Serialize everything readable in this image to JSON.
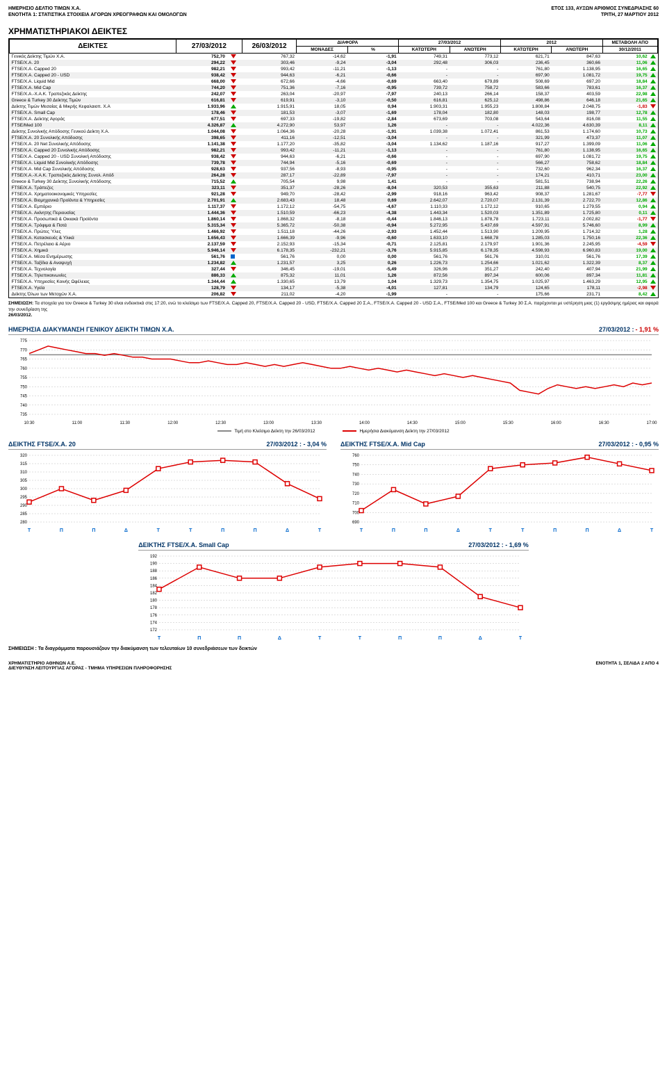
{
  "header": {
    "l1": "ΗΜΕΡΗΣΙΟ ΔΕΛΤΙΟ ΤΙΜΩΝ Χ.Α.",
    "l2": "ΕΝΟΤΗΤΑ 1: ΣΤΑΤΙΣΤΙΚΑ ΣΤΟΙΧΕΙΑ ΑΓΟΡΩΝ ΧΡΕΟΓΡΑΦΩΝ ΚΑΙ ΟΜΟΛΟΓΩΝ",
    "r1": "ΕΤΟΣ 133,  ΑΥΞΩΝ ΑΡΙΘΜΟΣ ΣΥΝΕΔΡΙΑΣΗΣ 60",
    "r2": "ΤΡΙΤΗ, 27 ΜΑΡΤΙΟΥ 2012"
  },
  "section_title": "ΧΡΗΜΑΤΙΣΤΗΡΙΑΚΟΙ ΔΕΙΚΤΕΣ",
  "table_head": {
    "deiktes": "ΔΕΙΚΤΕΣ",
    "d1": "27/03/2012",
    "d2": "26/03/2012",
    "diafora": "ΔΙΑΦΟΡΑ",
    "monades": "ΜΟΝΑΔΕΣ",
    "pct": "%",
    "g1": "27/03/2012",
    "g2": "2012",
    "kat": "ΚΑΤΩΤΕΡΗ",
    "ano": "ΑΝΩΤΕΡΗ",
    "met": "ΜΕΤΑΒΟΛΗ ΑΠΟ",
    "met2": "30/12/2011"
  },
  "rows": [
    {
      "n": "Γενικός Δείκτης Τιμών Χ.Α.",
      "v1": "752,70",
      "t1": "dn",
      "v2": "767,32",
      "d": "-14,62",
      "p": "-1,91",
      "k1": "749,31",
      "a1": "773,12",
      "k2": "621,71",
      "a2": "847,63",
      "m": "10,62",
      "mt": "up"
    },
    {
      "n": "FTSE/X.A. 20",
      "v1": "294,22",
      "t1": "dn",
      "v2": "303,46",
      "d": "-9,24",
      "p": "-3,04",
      "k1": "292,48",
      "a1": "306,03",
      "k2": "236,45",
      "a2": "360,66",
      "m": "11,06",
      "mt": "up"
    },
    {
      "n": "FTSE/X.A. Capped 20",
      "v1": "982,21",
      "t1": "dn",
      "v2": "993,42",
      "d": "-11,21",
      "p": "-1,13",
      "k1": "-",
      "a1": "-",
      "k2": "761,80",
      "a2": "1.138,95",
      "m": "16,65",
      "mt": "up"
    },
    {
      "n": "FTSE/X.A. Capped 20 - USD",
      "v1": "938,42",
      "t1": "dn",
      "v2": "944,63",
      "d": "-6,21",
      "p": "-0,66",
      "k1": "-",
      "a1": "-",
      "k2": "697,90",
      "a2": "1.081,72",
      "m": "19,75",
      "mt": "up"
    },
    {
      "n": "FTSE/X.A. Liquid Mid",
      "v1": "668,00",
      "t1": "dn",
      "v2": "672,66",
      "d": "-4,66",
      "p": "-0,69",
      "k1": "663,40",
      "a1": "679,89",
      "k2": "508,69",
      "a2": "697,20",
      "m": "18,84",
      "mt": "up"
    },
    {
      "n": "FTSE/X.A. Mid Cap",
      "v1": "744,20",
      "t1": "dn",
      "v2": "751,36",
      "d": "-7,16",
      "p": "-0,95",
      "k1": "739,72",
      "a1": "758,72",
      "k2": "583,66",
      "a2": "783,61",
      "m": "16,37",
      "mt": "up"
    },
    {
      "n": "FTSE/X.A.-X.A.K. Τραπεζικός Δείκτης",
      "v1": "242,07",
      "t1": "dn",
      "v2": "263,04",
      "d": "-20,97",
      "p": "-7,97",
      "k1": "240,13",
      "a1": "266,14",
      "k2": "158,37",
      "a2": "403,59",
      "m": "22,98",
      "mt": "up"
    },
    {
      "n": "Greece & Turkey 30 Δείκτης Τιμών",
      "v1": "616,81",
      "t1": "dn",
      "v2": "619,91",
      "d": "-3,10",
      "p": "-0,50",
      "k1": "616,81",
      "a1": "625,12",
      "k2": "498,86",
      "a2": "646,18",
      "m": "21,65",
      "mt": "up"
    },
    {
      "n": "Δείκτης Τιμών Μεσαίας & Μικρής Κεφαλαιοπ.  Χ.Α",
      "v1": "1.933,96",
      "t1": "up",
      "v2": "1.915,91",
      "d": "18,05",
      "p": "0,94",
      "k1": "1.903,31",
      "a1": "1.955,23",
      "k2": "1.808,84",
      "a2": "2.048,75",
      "m": "-1,83",
      "mt": "dn"
    },
    {
      "n": "FTSE/X.A. Small Cap",
      "v1": "178,46",
      "t1": "dn",
      "v2": "181,53",
      "d": "-3,07",
      "p": "-1,69",
      "k1": "178,04",
      "a1": "182,80",
      "k2": "148,03",
      "a2": "198,77",
      "m": "12,78",
      "mt": "up"
    },
    {
      "n": "FTSE/X.A. Δείκτης Αγοράς",
      "v1": "677,51",
      "t1": "dn",
      "v2": "697,33",
      "d": "-19,82",
      "p": "-2,84",
      "k1": "673,69",
      "a1": "703,08",
      "k2": "543,64",
      "a2": "816,08",
      "m": "11,55",
      "mt": "up"
    },
    {
      "n": "FTSE/Med 100",
      "v1": "4.326,87",
      "t1": "up",
      "v2": "4.272,90",
      "d": "53,97",
      "p": "1,26",
      "k1": "-",
      "a1": "-",
      "k2": "4.022,36",
      "a2": "4.630,39",
      "m": "8,11",
      "mt": "up"
    },
    {
      "n": "Δείκτης Συνολικής Απόδοσης Γενικού Δείκτη Χ.Α.",
      "v1": "1.044,08",
      "t1": "dn",
      "v2": "1.064,36",
      "d": "-20,28",
      "p": "-1,91",
      "k1": "1.039,38",
      "a1": "1.072,41",
      "k2": "861,53",
      "a2": "1.174,60",
      "m": "10,73",
      "mt": "up"
    },
    {
      "n": "FTSE/X.A. 20 Συνολικής Απόδοσης",
      "v1": "398,65",
      "t1": "dn",
      "v2": "411,16",
      "d": "-12,51",
      "p": "-3,04",
      "k1": "-",
      "a1": "-",
      "k2": "321,99",
      "a2": "473,37",
      "m": "11,07",
      "mt": "up"
    },
    {
      "n": "FTSE/X.A. 20 Net Συνολικής Απόδοσης",
      "v1": "1.141,38",
      "t1": "dn",
      "v2": "1.177,20",
      "d": "-35,82",
      "p": "-3,04",
      "k1": "1.134,62",
      "a1": "1.187,16",
      "k2": "917,27",
      "a2": "1.399,09",
      "m": "11,06",
      "mt": "up"
    },
    {
      "n": "FTSE/X.A. Capped 20 Συνολικής Απόδοσης",
      "v1": "982,21",
      "t1": "dn",
      "v2": "993,42",
      "d": "-11,21",
      "p": "-1,13",
      "k1": "-",
      "a1": "-",
      "k2": "761,80",
      "a2": "1.138,95",
      "m": "16,65",
      "mt": "up"
    },
    {
      "n": "FTSE/X.A. Capped 20 - USD Συνολική Απόδοσης",
      "v1": "938,42",
      "t1": "dn",
      "v2": "944,63",
      "d": "-6,21",
      "p": "-0,66",
      "k1": "-",
      "a1": "-",
      "k2": "697,90",
      "a2": "1.081,72",
      "m": "19,75",
      "mt": "up"
    },
    {
      "n": "FTSE/X.A. Liquid Mid Συνολικής Απόδοσης",
      "v1": "739,78",
      "t1": "dn",
      "v2": "744,94",
      "d": "-5,16",
      "p": "-0,69",
      "k1": "-",
      "a1": "-",
      "k2": "566,27",
      "a2": "758,62",
      "m": "18,84",
      "mt": "up"
    },
    {
      "n": "FTSE/X.A. Mid Cap Συνολικής Απόδοσης",
      "v1": "928,63",
      "t1": "dn",
      "v2": "937,56",
      "d": "-8,93",
      "p": "-0,95",
      "k1": "-",
      "a1": "-",
      "k2": "732,60",
      "a2": "962,34",
      "m": "16,37",
      "mt": "up"
    },
    {
      "n": "FTSE/X.A.-X.A.K. Τραπεζικός Δείκτης Συνολ. Απόδ",
      "v1": "264,28",
      "t1": "dn",
      "v2": "287,17",
      "d": "-22,89",
      "p": "-7,97",
      "k1": "-",
      "a1": "-",
      "k2": "174,21",
      "a2": "410,71",
      "m": "23,00",
      "mt": "up"
    },
    {
      "n": "Greece & Turkey 30 Δείκτης Συνολικής Απόδοσης",
      "v1": "715,52",
      "t1": "up",
      "v2": "705,54",
      "d": "9,98",
      "p": "1,41",
      "k1": "-",
      "a1": "-",
      "k2": "581,51",
      "a2": "738,94",
      "m": "22,26",
      "mt": "up"
    },
    {
      "n": "FTSE/X.A. Τράπεζες",
      "v1": "323,11",
      "t1": "dn",
      "v2": "351,37",
      "d": "-28,26",
      "p": "-8,04",
      "k1": "320,53",
      "a1": "355,63",
      "k2": "211,88",
      "a2": "540,75",
      "m": "22,92",
      "mt": "up"
    },
    {
      "n": "FTSE/X.A. Χρηματοοικονομικές Υπηρεσίες",
      "v1": "921,28",
      "t1": "dn",
      "v2": "949,70",
      "d": "-28,42",
      "p": "-2,99",
      "k1": "918,16",
      "a1": "963,42",
      "k2": "908,37",
      "a2": "1.281,67",
      "m": "-7,77",
      "mt": "dn"
    },
    {
      "n": "FTSE/X.A. Βιομηχανικά Προϊόντα & Υπηρεσίες",
      "v1": "2.701,91",
      "t1": "up",
      "v2": "2.683,43",
      "d": "18,48",
      "p": "0,69",
      "k1": "2.642,07",
      "a1": "2.720,07",
      "k2": "2.131,39",
      "a2": "2.722,70",
      "m": "12,86",
      "mt": "up"
    },
    {
      "n": "FTSE/X.A. Εμπόριο",
      "v1": "1.117,37",
      "t1": "dn",
      "v2": "1.172,12",
      "d": "-54,75",
      "p": "-4,67",
      "k1": "1.110,33",
      "a1": "1.172,12",
      "k2": "910,65",
      "a2": "1.279,55",
      "m": "0,94",
      "mt": "up"
    },
    {
      "n": "FTSE/X.A. Ακίνητης Περιουσίας",
      "v1": "1.444,36",
      "t1": "dn",
      "v2": "1.510,59",
      "d": "-66,23",
      "p": "-4,38",
      "k1": "1.443,34",
      "a1": "1.520,03",
      "k2": "1.351,89",
      "a2": "1.725,80",
      "m": "0,11",
      "mt": "up"
    },
    {
      "n": "FTSE/X.A. Προσωπικά & Οικιακά Προϊόντα",
      "v1": "1.860,14",
      "t1": "dn",
      "v2": "1.868,32",
      "d": "-8,18",
      "p": "-0,44",
      "k1": "1.846,13",
      "a1": "1.878,78",
      "k2": "1.723,11",
      "a2": "2.002,82",
      "m": "-1,77",
      "mt": "dn"
    },
    {
      "n": "FTSE/X.A. Τρόφιμα & Ποτά",
      "v1": "5.315,34",
      "t1": "dn",
      "v2": "5.365,72",
      "d": "-50,38",
      "p": "-0,94",
      "k1": "5.272,95",
      "a1": "5.437,69",
      "k2": "4.597,91",
      "a2": "5.746,60",
      "m": "8,99",
      "mt": "up"
    },
    {
      "n": "FTSE/X.A. Πρώτες  Ύλες",
      "v1": "1.466,92",
      "t1": "dn",
      "v2": "1.511,18",
      "d": "-44,26",
      "p": "-2,93",
      "k1": "1.452,44",
      "a1": "1.513,90",
      "k2": "1.209,95",
      "a2": "1.714,32",
      "m": "1,28",
      "mt": "up"
    },
    {
      "n": "FTSE/X.A. Κατασκευές & Υλικά",
      "v1": "1.656,43",
      "t1": "dn",
      "v2": "1.666,39",
      "d": "-9,96",
      "p": "-0,60",
      "k1": "1.633,10",
      "a1": "1.668,78",
      "k2": "1.285,03",
      "a2": "1.750,16",
      "m": "22,36",
      "mt": "up"
    },
    {
      "n": "FTSE/X.A. Πετρέλαιο & Αέριο",
      "v1": "2.137,59",
      "t1": "dn",
      "v2": "2.152,93",
      "d": "-15,34",
      "p": "-0,71",
      "k1": "2.125,81",
      "a1": "2.179,97",
      "k2": "1.901,36",
      "a2": "2.245,95",
      "m": "-4,59",
      "mt": "dn"
    },
    {
      "n": "FTSE/X.A. Χημικά",
      "v1": "5.946,14",
      "t1": "dn",
      "v2": "6.178,35",
      "d": "-232,21",
      "p": "-3,76",
      "k1": "5.915,85",
      "a1": "6.178,35",
      "k2": "4.598,93",
      "a2": "6.960,83",
      "m": "19,00",
      "mt": "up"
    },
    {
      "n": "FTSE/X.A. Μέσα Ενημέρωσης",
      "v1": "561,76",
      "t1": "eq",
      "v2": "561,76",
      "d": "0,00",
      "p": "0,00",
      "k1": "561,76",
      "a1": "561,76",
      "k2": "310,01",
      "a2": "561,76",
      "m": "17,39",
      "mt": "up"
    },
    {
      "n": "FTSE/X.A. Ταξίδια & Αναψυχή",
      "v1": "1.234,82",
      "t1": "up",
      "v2": "1.231,57",
      "d": "3,25",
      "p": "0,26",
      "k1": "1.226,73",
      "a1": "1.254,66",
      "k2": "1.021,62",
      "a2": "1.322,39",
      "m": "8,37",
      "mt": "up"
    },
    {
      "n": "FTSE/X.A. Τεχνολογία",
      "v1": "327,44",
      "t1": "dn",
      "v2": "346,45",
      "d": "-19,01",
      "p": "-5,49",
      "k1": "326,96",
      "a1": "351,27",
      "k2": "242,40",
      "a2": "407,94",
      "m": "21,99",
      "mt": "up"
    },
    {
      "n": "FTSE/X.A. Τηλεπικοινωνίες",
      "v1": "886,33",
      "t1": "up",
      "v2": "875,32",
      "d": "11,01",
      "p": "1,26",
      "k1": "872,56",
      "a1": "897,34",
      "k2": "600,06",
      "a2": "897,34",
      "m": "11,81",
      "mt": "up"
    },
    {
      "n": "FTSE/X.A. Υπηρεσίες Κοινής Ωφέλειας",
      "v1": "1.344,44",
      "t1": "up",
      "v2": "1.330,65",
      "d": "13,79",
      "p": "1,04",
      "k1": "1.329,73",
      "a1": "1.354,75",
      "k2": "1.025,97",
      "a2": "1.463,29",
      "m": "12,95",
      "mt": "up"
    },
    {
      "n": "FTSE/X.A. Υγεία",
      "v1": "128,79",
      "t1": "dn",
      "v2": "134,17",
      "d": "-5,38",
      "p": "-4,01",
      "k1": "127,81",
      "a1": "134,79",
      "k2": "124,65",
      "a2": "178,11",
      "m": "-2,98",
      "mt": "dn"
    },
    {
      "n": "Δείκτης Όλων των Μετοχών Χ.Α.",
      "v1": "206,82",
      "t1": "dn",
      "v2": "211,02",
      "d": "-4,20",
      "p": "-1,99",
      "k1": "-",
      "a1": "-",
      "k2": "175,66",
      "a2": "231,71",
      "m": "8,42",
      "mt": "up"
    }
  ],
  "note": {
    "label": "ΣΗΜΕΙΩΣΗ:",
    "text": "Τα στοιχεία για τον Greece & Turkey 30 είναι ενδεικτικά στις 17:20, ενώ το κλείσιμο των FTSE/X.A. Capped 20, FTSE/X.A. Capped 20 - USD, FTSE/X.A. Capped 20 Σ.Α., FTSE/X.A. Capped 20 - USD Σ.Α., FTSE/Med 100 και Greece & Turkey 30 Σ.Α. παρέχονται με υστέρηση μιας (1) εργάσιμης ημέρας και αφορά την συνεδρίαση της",
    "date": "26/03/2012."
  },
  "chart1": {
    "title": "ΗΜΕΡΗΣΙΑ ΔΙΑΚΥΜΑΝΣΗ ΓΕΝΙΚΟΥ ΔΕΙΚΤΗ ΤΙΜΩΝ Χ.Α.",
    "date": "27/03/2012 :",
    "pct": "- 1,91 %",
    "ylim": [
      735,
      775
    ],
    "ytick": 5,
    "xticks": [
      "10:30",
      "11:00",
      "11:30",
      "12:00",
      "12:30",
      "13:00",
      "13:30",
      "14:00",
      "14:30",
      "15:00",
      "15:30",
      "16:00",
      "16:30",
      "17:00"
    ],
    "baseline": 767.32,
    "series": [
      768,
      770,
      772,
      771,
      770,
      769,
      768,
      768,
      767,
      768,
      767,
      766,
      766,
      765,
      765,
      765,
      764,
      763,
      763,
      764,
      763,
      762,
      762,
      763,
      762,
      761,
      762,
      761,
      762,
      763,
      762,
      761,
      760,
      760,
      761,
      760,
      759,
      760,
      759,
      758,
      759,
      758,
      757,
      756,
      757,
      756,
      755,
      756,
      755,
      754,
      753,
      752,
      748,
      747,
      746,
      749,
      751,
      750,
      749,
      750,
      749,
      750,
      751,
      750,
      752,
      751,
      752
    ],
    "legend1": "Τιμή στο Κλείσιμο Δείκτη την 26/03/2012",
    "legend2": "Ημερήσια Διακύμανση Δείκτη την  27/03/2012"
  },
  "chart2": {
    "title": "ΔΕΙΚΤΗΣ FTSE/X.A. 20",
    "date": "27/03/2012 : - 3,04 %",
    "ylim": [
      280,
      320
    ],
    "ytick": 5,
    "xticks": [
      "Τ",
      "Π",
      "Π",
      "Δ",
      "Τ",
      "Τ",
      "Π",
      "Π",
      "Δ",
      "Τ"
    ],
    "series": [
      292,
      300,
      293,
      299,
      312,
      316,
      317,
      316,
      303,
      294
    ]
  },
  "chart3": {
    "title": "ΔΕΙΚΤΗΣ FTSE/X.A. Mid Cap",
    "date": "27/03/2012 : - 0,95 %",
    "ylim": [
      690,
      760
    ],
    "ytick": 10,
    "xticks": [
      "Τ",
      "Π",
      "Π",
      "Δ",
      "Τ",
      "Τ",
      "Π",
      "Π",
      "Δ",
      "Τ"
    ],
    "series": [
      702,
      724,
      709,
      717,
      746,
      750,
      752,
      758,
      751,
      744
    ]
  },
  "chart4": {
    "title": "ΔΕΙΚΤΗΣ FTSE/X.A. Small Cap",
    "date": "27/03/2012 : - 1,69 %",
    "ylim": [
      172,
      192
    ],
    "ytick": 2,
    "xticks": [
      "Τ",
      "Π",
      "Π",
      "Δ",
      "Τ",
      "Τ",
      "Π",
      "Π",
      "Δ",
      "Τ"
    ],
    "series": [
      183,
      189,
      186,
      186,
      189,
      190,
      190,
      189,
      181,
      178
    ]
  },
  "foot_note": "ΣΗΜΕΙΩΣΗ :  Τα διαγράμματα παρουσιάζουν την διακύμανση των τελευταίων 10 συνεδριάσεων των δεικτών",
  "footer": {
    "l1": "ΧΡΗΜΑΤΙΣΤΗΡΙΟ ΑΘΗΝΩΝ Α.Ε.",
    "l2": "ΔΙΕΥΘΥΝΣΗ ΛΕΙΤΟΥΡΓΙΑΣ ΑΓΟΡΑΣ - ΤΜΗΜΑ ΥΠΗΡΕΣΙΩΝ ΠΛΗΡΟΦΟΡΗΣΗΣ",
    "r": "ΕΝΟΤΗΤΑ 1, ΣΕΛΙΔΑ 2 ΑΠΟ 4"
  }
}
